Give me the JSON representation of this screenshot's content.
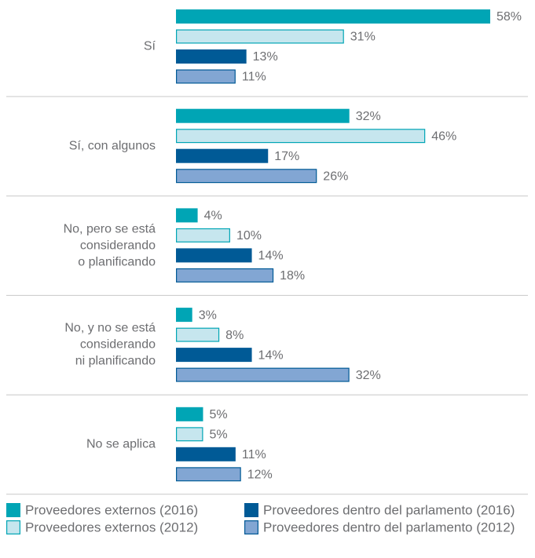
{
  "chart_data": {
    "type": "bar",
    "orientation": "horizontal",
    "categories": [
      "Sí",
      "Sí, con algunos",
      "No, pero se está\nconsiderando\no planificando",
      "No, y no se está\nconsiderando\nni planificando",
      "No se aplica"
    ],
    "series": [
      {
        "name": "Proveedores externos (2016)",
        "color": "#00a5b5",
        "values": [
          58,
          32,
          4,
          3,
          5
        ],
        "value_labels": [
          "58%",
          "32%",
          "4%",
          "3%",
          "5%"
        ]
      },
      {
        "name": "Proveedores externos (2012)",
        "color": "#c6e6ee",
        "values": [
          31,
          46,
          10,
          8,
          5
        ],
        "value_labels": [
          "31%",
          "46%",
          "10%",
          "8%",
          "5%"
        ]
      },
      {
        "name": "Proveedores dentro del parlamento (2016)",
        "color": "#005a96",
        "values": [
          13,
          17,
          14,
          14,
          11
        ],
        "value_labels": [
          "13%",
          "17%",
          "14%",
          "14%",
          "11%"
        ]
      },
      {
        "name": "Proveedores dentro del parlamento (2012)",
        "color": "#82a6d3",
        "values": [
          11,
          26,
          18,
          32,
          12
        ],
        "value_labels": [
          "11%",
          "26%",
          "18%",
          "32%",
          "12%"
        ]
      }
    ]
  }
}
